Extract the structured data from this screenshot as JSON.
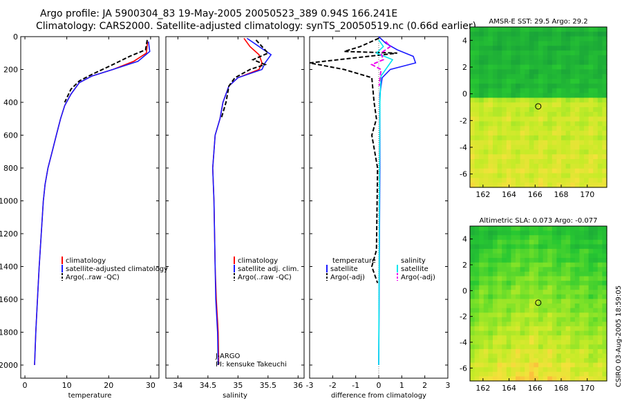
{
  "title": {
    "line1": "Argo profile: JA 5900304_83 19-May-2005 20050523_389 0.94S 166.241E",
    "line2": "Climatology: CARS2000. Satellite-adjusted climatology: synTS_20050519.nc (0.66d earlier)"
  },
  "side_text": "CSIRO 03-Aug-2005 18:59:05",
  "colors": {
    "red": "#ff0000",
    "blue": "#1a1aff",
    "black": "#000000",
    "cyan": "#00e5ee",
    "magenta": "#ee00ee"
  },
  "chart_data": [
    {
      "type": "line",
      "xlabel": "temperature",
      "ylabel": "",
      "xlim": [
        -1,
        32
      ],
      "ylim": [
        2080,
        0
      ],
      "xticks": [
        "0",
        "10",
        "20",
        "30"
      ],
      "xtick_values": [
        0,
        10,
        20,
        30
      ],
      "yticks": [
        "0",
        "200",
        "400",
        "600",
        "800",
        "1000",
        "1200",
        "1400",
        "1600",
        "1800",
        "2000"
      ],
      "ytick_values": [
        0,
        200,
        400,
        600,
        800,
        1000,
        1200,
        1400,
        1600,
        1800,
        2000
      ],
      "series": [
        {
          "name": "climatology",
          "color": "#ff0000",
          "dash": "",
          "points": [
            [
              29.3,
              30
            ],
            [
              29.0,
              100
            ],
            [
              26,
              150
            ],
            [
              21,
              200
            ],
            [
              16,
              240
            ],
            [
              13,
              280
            ],
            [
              11,
              350
            ],
            [
              9.5,
              420
            ],
            [
              8.5,
              500
            ],
            [
              7.5,
              600
            ],
            [
              6.5,
              700
            ],
            [
              5.5,
              800
            ],
            [
              4.8,
              900
            ],
            [
              4.4,
              1000
            ],
            [
              3.9,
              1200
            ],
            [
              3.4,
              1400
            ],
            [
              3.0,
              1600
            ],
            [
              2.6,
              1800
            ],
            [
              2.3,
              2000
            ]
          ]
        },
        {
          "name": "satellite-adjusted climatology",
          "color": "#1a1aff",
          "dash": "",
          "points": [
            [
              29.5,
              30
            ],
            [
              29.8,
              90
            ],
            [
              27,
              150
            ],
            [
              21,
              200
            ],
            [
              16,
              240
            ],
            [
              13,
              280
            ],
            [
              11,
              350
            ],
            [
              9.5,
              420
            ],
            [
              8.5,
              500
            ],
            [
              7.5,
              600
            ],
            [
              6.5,
              700
            ],
            [
              5.5,
              800
            ],
            [
              4.8,
              900
            ],
            [
              4.4,
              1000
            ],
            [
              3.9,
              1200
            ],
            [
              3.4,
              1400
            ],
            [
              3.0,
              1600
            ],
            [
              2.6,
              1800
            ],
            [
              2.3,
              2000
            ]
          ]
        },
        {
          "name": "Argo(..raw -QC)",
          "color": "#000000",
          "dash": "6,3",
          "points": [
            [
              29.2,
              20
            ],
            [
              28.8,
              80
            ],
            [
              25,
              120
            ],
            [
              21,
              170
            ],
            [
              16,
              230
            ],
            [
              13,
              270
            ],
            [
              11,
              320
            ],
            [
              9.5,
              400
            ]
          ]
        }
      ],
      "legend": [
        "climatology",
        "satellite-adjusted climatology",
        "Argo(..raw -QC)"
      ]
    },
    {
      "type": "line",
      "xlabel": "salinity",
      "xlim": [
        33.8,
        36.1
      ],
      "ylim": [
        2080,
        0
      ],
      "xticks": [
        "34",
        "34.5",
        "35",
        "35.5",
        "36"
      ],
      "xtick_values": [
        34,
        34.5,
        35,
        35.5,
        36
      ],
      "series": [
        {
          "name": "climatology",
          "color": "#ff0000",
          "dash": "",
          "points": [
            [
              35.1,
              10
            ],
            [
              35.2,
              60
            ],
            [
              35.35,
              110
            ],
            [
              35.4,
              160
            ],
            [
              35.35,
              200
            ],
            [
              35.0,
              250
            ],
            [
              34.85,
              300
            ],
            [
              34.75,
              400
            ],
            [
              34.7,
              500
            ],
            [
              34.62,
              600
            ],
            [
              34.58,
              800
            ],
            [
              34.6,
              1000
            ],
            [
              34.62,
              1400
            ],
            [
              34.64,
              1600
            ],
            [
              34.67,
              1800
            ],
            [
              34.68,
              2000
            ]
          ]
        },
        {
          "name": "satellite adj. clim.",
          "color": "#1a1aff",
          "dash": "",
          "points": [
            [
              35.15,
              10
            ],
            [
              35.35,
              60
            ],
            [
              35.55,
              110
            ],
            [
              35.45,
              160
            ],
            [
              35.4,
              200
            ],
            [
              35.0,
              250
            ],
            [
              34.85,
              300
            ],
            [
              34.75,
              400
            ],
            [
              34.7,
              500
            ],
            [
              34.62,
              600
            ],
            [
              34.58,
              800
            ],
            [
              34.6,
              1000
            ],
            [
              34.62,
              1400
            ],
            [
              34.63,
              1600
            ],
            [
              34.66,
              1800
            ],
            [
              34.67,
              2000
            ]
          ]
        },
        {
          "name": "Argo(..raw -QC)",
          "color": "#000000",
          "dash": "6,3",
          "points": [
            [
              35.3,
              20
            ],
            [
              35.4,
              60
            ],
            [
              35.5,
              100
            ],
            [
              35.25,
              140
            ],
            [
              35.45,
              170
            ],
            [
              35.2,
              200
            ],
            [
              34.95,
              250
            ],
            [
              34.85,
              300
            ],
            [
              34.8,
              400
            ],
            [
              34.72,
              500
            ]
          ]
        }
      ],
      "legend": [
        "climatology",
        "satellite adj. clim.",
        "Argo(..raw -QC)"
      ],
      "annotation_line1": "J-ARGO",
      "annotation_line2": "PI: kensuke Takeuchi"
    },
    {
      "type": "line",
      "xlabel": "difference from climatology",
      "xlim": [
        -3,
        3
      ],
      "ylim": [
        2080,
        0
      ],
      "xticks": [
        "-3",
        "-2",
        "-1",
        "0",
        "1",
        "2",
        "3"
      ],
      "xtick_values": [
        -3,
        -2,
        -1,
        0,
        1,
        2,
        3
      ],
      "series": [
        {
          "name": "temperature satellite",
          "color": "#1a1aff",
          "dash": "",
          "points": [
            [
              0,
              0
            ],
            [
              0.3,
              40
            ],
            [
              0.8,
              80
            ],
            [
              1.5,
              120
            ],
            [
              1.6,
              160
            ],
            [
              0.5,
              200
            ],
            [
              0.15,
              250
            ],
            [
              0.05,
              350
            ],
            [
              0.05,
              800
            ],
            [
              0.0,
              2000
            ]
          ]
        },
        {
          "name": "temperature Argo(-adj)",
          "color": "#000000",
          "dash": "6,3",
          "points": [
            [
              0,
              10
            ],
            [
              -0.8,
              60
            ],
            [
              -1.5,
              90
            ],
            [
              0.8,
              100
            ],
            [
              -3,
              160
            ],
            [
              -1.5,
              200
            ],
            [
              -0.3,
              250
            ],
            [
              -0.2,
              400
            ],
            [
              -0.1,
              500
            ],
            [
              -0.3,
              600
            ],
            [
              -0.05,
              800
            ],
            [
              -0.1,
              1300
            ],
            [
              -0.3,
              1400
            ],
            [
              -0.05,
              1500
            ]
          ]
        },
        {
          "name": "salinity satellite",
          "color": "#00e5ee",
          "dash": "",
          "points": [
            [
              0,
              20
            ],
            [
              0.2,
              60
            ],
            [
              -0.1,
              100
            ],
            [
              0.6,
              140
            ],
            [
              0.3,
              200
            ],
            [
              0.1,
              240
            ],
            [
              0.05,
              400
            ],
            [
              0.0,
              2000
            ]
          ]
        },
        {
          "name": "salinity Argo(-adj)",
          "color": "#ee00ee",
          "dash": "6,3",
          "points": [
            [
              0.3,
              30
            ],
            [
              0.5,
              60
            ],
            [
              0.1,
              100
            ],
            [
              0.2,
              140
            ],
            [
              -0.3,
              170
            ],
            [
              0.1,
              200
            ],
            [
              0.02,
              300
            ]
          ]
        }
      ],
      "legend_left": [
        "temperature",
        "satellite",
        "Argo(-adj)"
      ],
      "legend_right": [
        "salinity",
        "satellite",
        "Argo(-adj)"
      ]
    },
    {
      "type": "heatmap",
      "title": "AMSR-E SST: 29.5 Argo: 29.2",
      "xlim": [
        161,
        171.5
      ],
      "ylim": [
        -7,
        5
      ],
      "xticks": [
        "162",
        "164",
        "166",
        "168",
        "170"
      ],
      "xtick_values": [
        162,
        164,
        166,
        168,
        170
      ],
      "yticks": [
        "4",
        "2",
        "0",
        "-2",
        "-4",
        "-6"
      ],
      "ytick_values": [
        4,
        2,
        0,
        -2,
        -4,
        -6
      ],
      "marker": [
        166.24,
        -0.94
      ]
    },
    {
      "type": "heatmap",
      "title": "Altimetric SLA: 0.073 Argo: -0.077",
      "xlim": [
        161,
        171.5
      ],
      "ylim": [
        -7,
        5
      ],
      "xticks": [
        "162",
        "164",
        "166",
        "168",
        "170"
      ],
      "xtick_values": [
        162,
        164,
        166,
        168,
        170
      ],
      "yticks": [
        "4",
        "2",
        "0",
        "-2",
        "-4",
        "-6"
      ],
      "ytick_values": [
        4,
        2,
        0,
        -2,
        -4,
        -6
      ],
      "marker": [
        166.24,
        -0.94
      ]
    }
  ]
}
